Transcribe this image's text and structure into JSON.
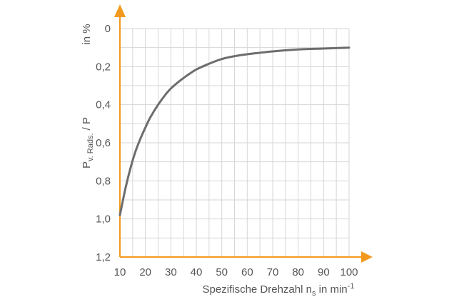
{
  "chart_data": {
    "type": "line",
    "x": [
      10,
      12,
      14,
      16,
      18,
      20,
      22,
      25,
      28,
      30,
      33,
      36,
      40,
      45,
      50,
      55,
      60,
      70,
      80,
      90,
      100
    ],
    "y": [
      0.98,
      0.85,
      0.74,
      0.65,
      0.58,
      0.52,
      0.465,
      0.4,
      0.345,
      0.315,
      0.28,
      0.25,
      0.215,
      0.185,
      0.16,
      0.145,
      0.135,
      0.12,
      0.11,
      0.105,
      0.1
    ],
    "xlim": [
      10,
      100
    ],
    "ylim": [
      0,
      1.2
    ],
    "y_inverted": true,
    "x_ticks": [
      "10",
      "20",
      "30",
      "40",
      "50",
      "60",
      "70",
      "80",
      "90",
      "100"
    ],
    "y_ticks": [
      "0",
      "0,2",
      "0,4",
      "0,6",
      "0,8",
      "1,0",
      "1,2"
    ],
    "xlabel": {
      "main": "Spezifische Drehzahl n",
      "sub": "s",
      "tail": " in min",
      "sup": "-1"
    },
    "ylabel": {
      "main": "P",
      "sub": "v. Rads.",
      "tail": " / P"
    },
    "yunit": "in %",
    "grid": true,
    "colors": {
      "line": "#6d6d6d",
      "axis": "#f29a1f",
      "grid": "#d6d6d6",
      "text": "#555555"
    }
  }
}
